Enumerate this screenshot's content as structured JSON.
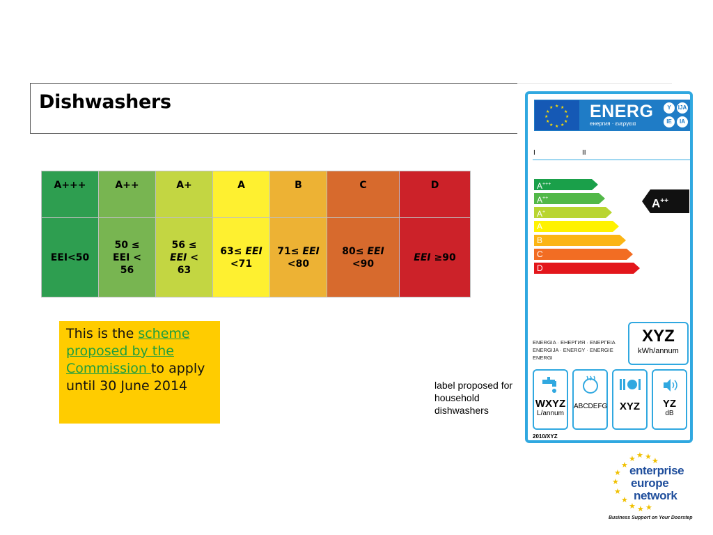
{
  "slide": {
    "title": "Dishwashers",
    "note": {
      "before": "This is the ",
      "link": "scheme proposed by the Commission ",
      "after": "to apply until 30 June 2014"
    },
    "caption": "label proposed for household dishwashers"
  },
  "eei_table": {
    "classes": [
      {
        "label": "A+++",
        "color": "#2e9e50",
        "threshold": "EEI<50"
      },
      {
        "label": "A++",
        "color": "#78b551",
        "threshold": "50 ≤ EEI < 56"
      },
      {
        "label": "A+",
        "color": "#c3d642",
        "threshold": "56 ≤ EEI < 63"
      },
      {
        "label": "A",
        "color": "#fef030",
        "threshold": "63≤ EEI <71"
      },
      {
        "label": "B",
        "color": "#edb234",
        "threshold": "71≤ EEI <80"
      },
      {
        "label": "C",
        "color": "#d76a2d",
        "threshold": "80≤ EEI <90"
      },
      {
        "label": "D",
        "color": "#cc2229",
        "threshold": "EEI ≥90"
      }
    ]
  },
  "energy_label": {
    "brand": "ENERG",
    "brand_sub": "енергия · ενεργεια",
    "badges": [
      "Y",
      "IJA",
      "IE",
      "IA"
    ],
    "col_I": "I",
    "col_II": "II",
    "scale": [
      {
        "letter": "A",
        "sup": "+++",
        "color": "#1aa04a"
      },
      {
        "letter": "A",
        "sup": "++",
        "color": "#52b848"
      },
      {
        "letter": "A",
        "sup": "+",
        "color": "#b9d531"
      },
      {
        "letter": "A",
        "sup": "",
        "color": "#fff200"
      },
      {
        "letter": "B",
        "sup": "",
        "color": "#fbb515"
      },
      {
        "letter": "C",
        "sup": "",
        "color": "#f26d23"
      },
      {
        "letter": "D",
        "sup": "",
        "color": "#e3161b"
      }
    ],
    "rating_letter": "A",
    "rating_sup": "++",
    "energy_words": "ENERGIA · ЕНЕРГИЯ · ΕΝΕΡΓΕΙΑ ENERGIJA · ENERGY · ENERGIE ENERGI",
    "annual_value": "XYZ",
    "annual_unit": "kWh/annum",
    "water_value": "WXYZ",
    "water_unit": "L/annum",
    "drying_value": "ABCDEFG",
    "settings_value": "XYZ",
    "noise_value": "YZ",
    "noise_unit": "dB",
    "footer": "2010/XYZ"
  },
  "logo": {
    "line1": "enterprise",
    "line2": "europe",
    "line3": "network",
    "tagline": "Business Support on Your Doorstep"
  }
}
